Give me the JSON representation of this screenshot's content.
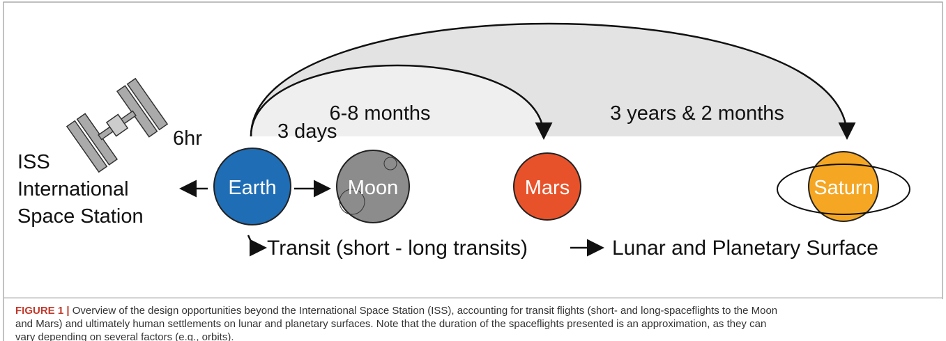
{
  "figure": {
    "durations": [
      "6-8 months",
      "3 years & 2 months"
    ],
    "iss_label": [
      "ISS",
      "International",
      "Space Station"
    ],
    "iss_time": "6hr",
    "moon_time": "3 days",
    "bodies": [
      "Earth",
      "Moon",
      "Mars",
      "Saturn"
    ],
    "transit": "Transit (short - long transits)",
    "surface": "Lunar and Planetary Surface",
    "caption": {
      "label": "FIGURE 1 |",
      "lines": [
        "Overview of the design opportunities beyond the International Space Station (ISS), accounting for transit flights (short- and long-spaceflights to the Moon",
        "and Mars) and ultimately human settlements on lunar and planetary surfaces. Note that the duration of the spaceflights presented is an approximation, as they can",
        "vary depending on several factors (e.g., orbits)."
      ]
    }
  }
}
